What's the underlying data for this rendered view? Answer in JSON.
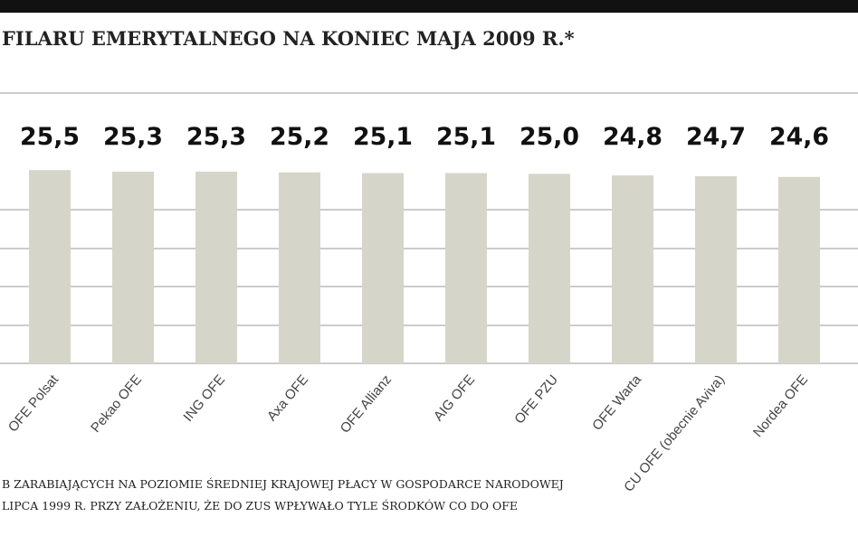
{
  "chart_data": {
    "type": "bar",
    "title": "FILARU EMERYTALNEGO NA KONIEC MAJA 2009 R.*",
    "categories": [
      "OFE Polsat",
      "Pekao OFE",
      "ING OFE",
      "Axa OFE",
      "OFE Allianz",
      "AIG OFE",
      "OFE PZU",
      "OFE Warta",
      "CU OFE (obecnie Aviva)",
      "Nordea OFE"
    ],
    "values": [
      25.5,
      25.3,
      25.3,
      25.2,
      25.1,
      25.1,
      25.0,
      24.8,
      24.7,
      24.6
    ],
    "value_labels": [
      "25,5",
      "25,3",
      "25,3",
      "25,2",
      "25,1",
      "25,1",
      "25,0",
      "24,8",
      "24,7",
      "24,6"
    ],
    "color": "#d6d5c9",
    "ylim": [
      0,
      26
    ],
    "footnotes": [
      "B ZARABIAJĄCYCH NA POZIOMIE ŚREDNIEJ KRAJOWEJ PŁACY W GOSPODARCE NARODOWEJ",
      "LIPCA 1999 R. PRZY ZAŁOŻENIU, ŻE DO ZUS WPŁYWAŁO TYLE ŚRODKÓW CO DO OFE"
    ]
  }
}
